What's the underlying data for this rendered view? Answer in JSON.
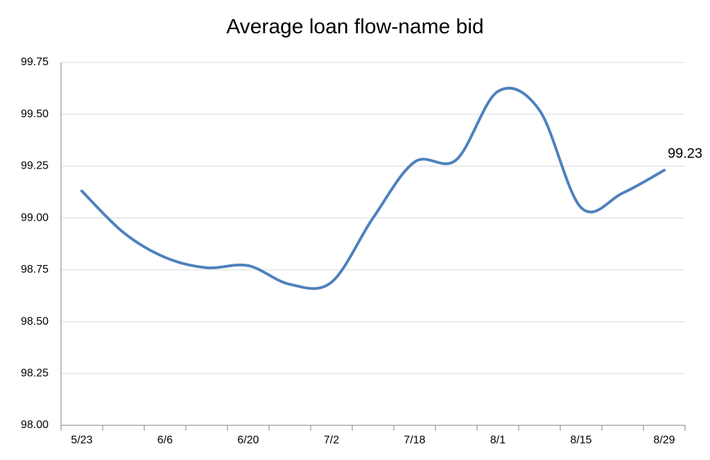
{
  "chart_data": {
    "type": "line",
    "title": "Average loan flow-name bid",
    "categories": [
      "5/23",
      null,
      "6/6",
      null,
      "6/20",
      null,
      "7/2",
      null,
      "7/18",
      null,
      "8/1",
      null,
      "8/15",
      null,
      "8/29"
    ],
    "values": [
      99.13,
      98.93,
      98.81,
      98.76,
      98.77,
      98.68,
      98.69,
      99.0,
      99.27,
      99.28,
      99.61,
      99.52,
      99.05,
      99.12,
      99.23
    ],
    "color": "#4f81bd",
    "ylim": [
      98,
      99.75
    ],
    "yticks": [
      {
        "value": 98,
        "label": "98.00"
      },
      {
        "value": 98.25,
        "label": "98.25"
      },
      {
        "value": 98.5,
        "label": "98.50"
      },
      {
        "value": 98.75,
        "label": "98.75"
      },
      {
        "value": 99,
        "label": "99.00"
      },
      {
        "value": 99.25,
        "label": "99.25"
      },
      {
        "value": 99.5,
        "label": "99.50"
      },
      {
        "value": 99.75,
        "label": "99.75"
      }
    ],
    "grid": true
  }
}
